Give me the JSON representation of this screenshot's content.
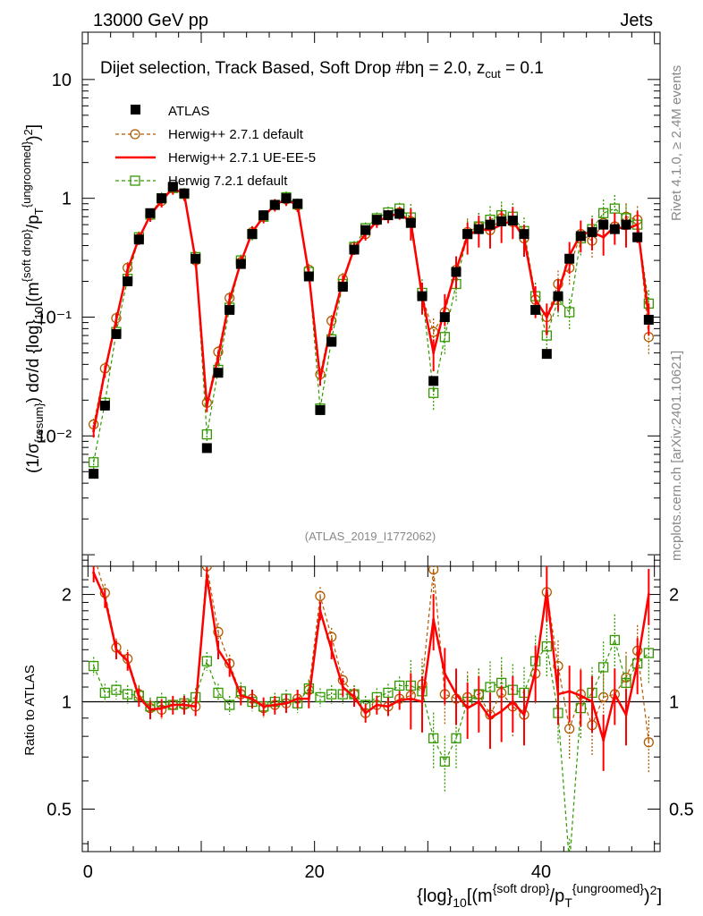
{
  "header": {
    "left": "13000 GeV pp",
    "right": "Jets"
  },
  "side_labels": {
    "top": "Rivet 4.1.0, ≥ 2.4M events",
    "bottom": "mcplots.cern.ch [arXiv:2401.10621]"
  },
  "colors": {
    "atlas": "#000000",
    "herwig_default": "#b35a00",
    "herwig_ue": "#ff0000",
    "herwig72": "#339900"
  },
  "chart_data": [
    {
      "type": "scatter",
      "panel": "main",
      "title": "Dijet selection, Track Based, Soft Drop #b",
      "title_suffix": "η = 2.0, z",
      "title_sub": "cut",
      "title_end": " = 0.1",
      "analysis": "(ATLAS_2019_I1772062)",
      "ylabel": "(1/σ{resum}) dσ/d {log}10[(m{soft drop}/pT{ungroomed})2]",
      "yscale": "log",
      "ylim": [
        0.0008,
        25
      ],
      "xlim": [
        -0.5,
        50.5
      ],
      "yticks": [
        {
          "v": 10,
          "t": "10"
        },
        {
          "v": 1,
          "t": "1"
        },
        {
          "v": 0.1,
          "t": "10⁻¹"
        },
        {
          "v": 0.01,
          "t": "10⁻²"
        }
      ],
      "x": [
        0.5,
        1.5,
        2.5,
        3.5,
        4.5,
        5.5,
        6.5,
        7.5,
        8.5,
        9.5,
        10.5,
        11.5,
        12.5,
        13.5,
        14.5,
        15.5,
        16.5,
        17.5,
        18.5,
        19.5,
        20.5,
        21.5,
        22.5,
        23.5,
        24.5,
        25.5,
        26.5,
        27.5,
        28.5,
        29.5,
        30.5,
        31.5,
        32.5,
        33.5,
        34.5,
        35.5,
        36.5,
        37.5,
        38.5,
        39.5,
        40.5,
        41.5,
        42.5,
        43.5,
        44.5,
        45.5,
        46.5,
        47.5,
        48.5,
        49.5
      ],
      "legend": [
        "ATLAS",
        "Herwig++ 2.7.1 default",
        "Herwig++ 2.7.1 UE-EE-5",
        "Herwig 7.2.1 default"
      ],
      "series": [
        {
          "name": "ATLAS",
          "values": [
            0.0048,
            0.018,
            0.072,
            0.2,
            0.45,
            0.75,
            1.0,
            1.25,
            1.1,
            0.31,
            0.0079,
            0.034,
            0.115,
            0.28,
            0.5,
            0.72,
            0.88,
            1.0,
            0.9,
            0.22,
            0.0165,
            0.062,
            0.18,
            0.37,
            0.54,
            0.66,
            0.72,
            0.74,
            0.62,
            0.15,
            0.029,
            0.1,
            0.24,
            0.5,
            0.55,
            0.6,
            0.64,
            0.65,
            0.5,
            0.115,
            0.049,
            0.15,
            0.31,
            0.48,
            0.52,
            0.6,
            0.55,
            0.6,
            0.47,
            0.095
          ]
        },
        {
          "name": "Herwig++ 2.7.1 default",
          "values": [
            0.0125,
            0.037,
            0.098,
            0.26,
            0.46,
            0.72,
            0.95,
            1.22,
            1.08,
            0.3,
            0.019,
            0.051,
            0.145,
            0.29,
            0.52,
            0.7,
            0.88,
            0.98,
            0.87,
            0.25,
            0.033,
            0.093,
            0.21,
            0.39,
            0.5,
            0.65,
            0.72,
            0.76,
            0.64,
            0.15,
            0.075,
            0.11,
            0.25,
            0.52,
            0.58,
            0.54,
            0.68,
            0.63,
            0.46,
            0.14,
            0.1,
            0.19,
            0.26,
            0.5,
            0.44,
            0.62,
            0.58,
            0.7,
            0.66,
            0.068
          ]
        },
        {
          "name": "Herwig++ 2.7.1 UE-EE-5",
          "values": [
            0.011,
            0.035,
            0.095,
            0.25,
            0.46,
            0.72,
            0.95,
            1.22,
            1.08,
            0.3,
            0.018,
            0.046,
            0.14,
            0.29,
            0.52,
            0.7,
            0.88,
            0.98,
            0.87,
            0.23,
            0.03,
            0.088,
            0.2,
            0.38,
            0.5,
            0.64,
            0.7,
            0.75,
            0.63,
            0.15,
            0.05,
            0.12,
            0.25,
            0.48,
            0.55,
            0.54,
            0.6,
            0.65,
            0.46,
            0.14,
            0.1,
            0.16,
            0.33,
            0.5,
            0.52,
            0.47,
            0.58,
            0.55,
            0.6,
            0.1
          ]
        },
        {
          "name": "Herwig 7.2.1 default",
          "values": [
            0.006,
            0.019,
            0.075,
            0.21,
            0.47,
            0.73,
            1.0,
            1.22,
            1.09,
            0.32,
            0.0103,
            0.036,
            0.12,
            0.3,
            0.5,
            0.7,
            0.88,
            1.02,
            0.89,
            0.24,
            0.017,
            0.065,
            0.19,
            0.39,
            0.56,
            0.68,
            0.76,
            0.82,
            0.69,
            0.16,
            0.023,
            0.068,
            0.19,
            0.5,
            0.58,
            0.66,
            0.72,
            0.7,
            0.53,
            0.15,
            0.07,
            0.14,
            0.11,
            0.46,
            0.55,
            0.75,
            0.82,
            0.68,
            0.6,
            0.13
          ]
        }
      ]
    },
    {
      "type": "scatter",
      "panel": "ratio",
      "ylabel": "Ratio to ATLAS",
      "xlabel": "{log}10[(m{soft drop}/pT{ungroomed})2]",
      "yscale": "log",
      "ylim": [
        0.38,
        2.4
      ],
      "xlim": [
        -0.5,
        50.5
      ],
      "yticks": [
        {
          "v": 2,
          "t": "2"
        },
        {
          "v": 1,
          "t": "1"
        },
        {
          "v": 0.5,
          "t": "0.5"
        }
      ],
      "xticks": [
        {
          "v": 0,
          "t": "0"
        },
        {
          "v": 20,
          "t": "20"
        },
        {
          "v": 40,
          "t": "40"
        }
      ],
      "x": [
        0.5,
        1.5,
        2.5,
        3.5,
        4.5,
        5.5,
        6.5,
        7.5,
        8.5,
        9.5,
        10.5,
        11.5,
        12.5,
        13.5,
        14.5,
        15.5,
        16.5,
        17.5,
        18.5,
        19.5,
        20.5,
        21.5,
        22.5,
        23.5,
        24.5,
        25.5,
        26.5,
        27.5,
        28.5,
        29.5,
        30.5,
        31.5,
        32.5,
        33.5,
        34.5,
        35.5,
        36.5,
        37.5,
        38.5,
        39.5,
        40.5,
        41.5,
        42.5,
        43.5,
        44.5,
        45.5,
        46.5,
        47.5,
        48.5,
        49.5
      ],
      "series": [
        {
          "name": "Herwig++ 2.7.1 default",
          "values": [
            2.6,
            2.02,
            1.42,
            1.32,
            1.05,
            0.96,
            0.95,
            0.98,
            0.98,
            0.97,
            2.4,
            1.57,
            1.28,
            1.05,
            1.02,
            0.96,
            0.98,
            0.99,
            1.02,
            1.08,
            1.98,
            1.52,
            1.15,
            1.05,
            0.93,
            0.98,
            0.97,
            1.02,
            1.04,
            1.12,
            2.35,
            1.05,
            1.02,
            1.03,
            1.05,
            0.92,
            1.06,
            0.97,
            0.92,
            1.2,
            2.03,
            1.26,
            0.84,
            1.05,
            0.86,
            1.03,
            1.05,
            1.17,
            1.39,
            0.77
          ]
        },
        {
          "name": "Herwig++ 2.7.1 UE-EE-5",
          "values": [
            2.3,
            1.95,
            1.4,
            1.3,
            1.03,
            0.95,
            0.96,
            0.98,
            0.98,
            0.97,
            2.25,
            1.4,
            1.25,
            1.04,
            1.02,
            0.97,
            0.98,
            0.99,
            1.02,
            1.02,
            1.8,
            1.4,
            1.1,
            1.03,
            0.93,
            0.98,
            0.97,
            1.01,
            1.02,
            1.0,
            1.7,
            1.2,
            1.05,
            0.96,
            1.0,
            0.9,
            0.94,
            1.0,
            0.92,
            1.22,
            2.05,
            1.05,
            1.07,
            1.04,
            1.0,
            0.78,
            1.05,
            0.92,
            1.28,
            2.0
          ]
        },
        {
          "name": "Herwig 7.2.1 default",
          "values": [
            1.26,
            1.06,
            1.08,
            1.05,
            1.04,
            0.97,
            1.0,
            0.98,
            0.99,
            1.03,
            1.3,
            1.06,
            0.98,
            1.07,
            1.0,
            0.97,
            1.0,
            1.02,
            0.99,
            1.09,
            1.03,
            1.05,
            1.05,
            1.05,
            0.98,
            1.03,
            1.06,
            1.11,
            1.11,
            1.07,
            0.79,
            0.68,
            0.79,
            1.0,
            1.05,
            1.1,
            1.13,
            1.08,
            1.06,
            1.3,
            1.43,
            0.93,
            0.35,
            0.96,
            1.06,
            1.25,
            1.49,
            1.13,
            1.28,
            1.37
          ]
        }
      ]
    }
  ]
}
